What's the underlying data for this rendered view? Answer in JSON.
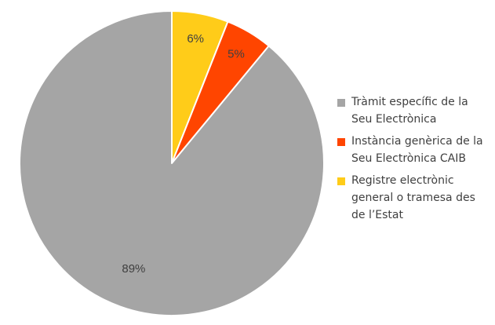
{
  "chart_data": {
    "type": "pie",
    "start_angle_deg": 0,
    "direction": "clockwise",
    "slices": [
      {
        "label_lines": [
          "Tràmit específic de la",
          "Seu Electrònica"
        ],
        "value": 89,
        "display": "89%",
        "color": "#A5A5A5"
      },
      {
        "label_lines": [
          "Instància genèrica de la",
          "Seu Electrònica CAIB"
        ],
        "value": 5,
        "display": "5%",
        "color": "#FF4500"
      },
      {
        "label_lines": [
          "Registre electrònic",
          "general o tramesa des",
          "de l’Estat"
        ],
        "value": 6,
        "display": "6%",
        "color": "#FFCC19"
      }
    ],
    "legend_position": "right",
    "legend_order": [
      0,
      1,
      2
    ],
    "draw_order": [
      2,
      1,
      0
    ]
  }
}
